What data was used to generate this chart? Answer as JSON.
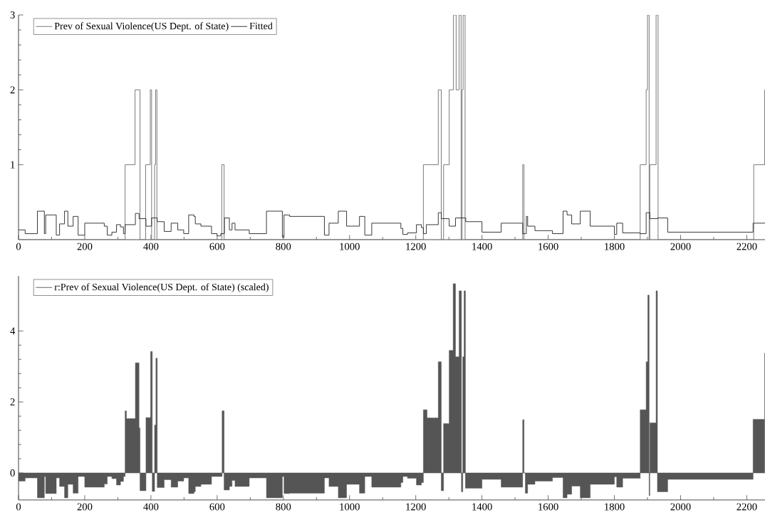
{
  "chart_data": [
    {
      "type": "step",
      "xlim": [
        0,
        2255
      ],
      "ylim": [
        0,
        3
      ],
      "xticks": [
        0,
        200,
        400,
        600,
        800,
        1000,
        1200,
        1400,
        1600,
        1800,
        2000,
        2200
      ],
      "yticks": [
        1,
        2,
        3
      ],
      "legend": "top left",
      "series": [
        {
          "name": "Prev of Sexual Violence(US Dept. of State)",
          "color": "#707070",
          "x": [
            0,
            322,
            352,
            367,
            384,
            398,
            402,
            411,
            414,
            418,
            614,
            621,
            1223,
            1268,
            1277,
            1284,
            1301,
            1314,
            1322,
            1331,
            1337,
            1340,
            1343,
            1349,
            1523,
            1527,
            1878,
            1896,
            1900,
            1905,
            1907,
            1926,
            1932,
            2221,
            2254
          ],
          "values": [
            0,
            1,
            2,
            0,
            1,
            2,
            0,
            1,
            2,
            0,
            1,
            0,
            1,
            2,
            0,
            1,
            2,
            3,
            2,
            3,
            0,
            2,
            3,
            0,
            1,
            0,
            1,
            2,
            3,
            0,
            1,
            3,
            0,
            1,
            2
          ]
        },
        {
          "name": "Fitted",
          "color": "#2a2a2a",
          "x": [
            0,
            20,
            57,
            78,
            82,
            114,
            124,
            139,
            149,
            165,
            180,
            200,
            259,
            268,
            282,
            296,
            308,
            317,
            322,
            353,
            364,
            385,
            402,
            419,
            440,
            461,
            481,
            499,
            514,
            530,
            534,
            551,
            583,
            600,
            611,
            622,
            637,
            645,
            654,
            697,
            749,
            797,
            802,
            819,
            924,
            938,
            966,
            991,
            1030,
            1046,
            1067,
            1155,
            1161,
            1175,
            1202,
            1217,
            1223,
            1232,
            1268,
            1277,
            1301,
            1320,
            1351,
            1400,
            1458,
            1523,
            1534,
            1538,
            1560,
            1613,
            1645,
            1657,
            1671,
            1697,
            1727,
            1800,
            1807,
            1825,
            1878,
            1896,
            1907,
            1930,
            1961,
            2219,
            2255
          ],
          "values": [
            0.13,
            0.08,
            0.38,
            0.08,
            0.33,
            0.06,
            0.21,
            0.38,
            0.18,
            0.31,
            0.06,
            0.22,
            0.18,
            0.06,
            0.1,
            0.2,
            0.17,
            0.08,
            0.2,
            0.35,
            0.28,
            0.18,
            0.29,
            0.24,
            0.11,
            0.22,
            0.13,
            0.08,
            0.33,
            0.31,
            0.21,
            0.18,
            0.08,
            0.05,
            0.08,
            0.29,
            0.13,
            0.22,
            0.13,
            0.08,
            0.38,
            0.03,
            0.33,
            0.31,
            0.06,
            0.22,
            0.38,
            0.18,
            0.31,
            0.06,
            0.22,
            0.15,
            0.07,
            0.09,
            0.2,
            0.16,
            0.08,
            0.2,
            0.36,
            0.28,
            0.18,
            0.29,
            0.24,
            0.1,
            0.22,
            0.08,
            0.31,
            0.18,
            0.12,
            0.08,
            0.38,
            0.33,
            0.21,
            0.38,
            0.18,
            0.07,
            0.22,
            0.09,
            0.08,
            0.36,
            0.28,
            0.29,
            0.1,
            0.22,
            0.22
          ]
        }
      ]
    },
    {
      "type": "area",
      "xlim": [
        0,
        2255
      ],
      "ylim": [
        -0.76,
        5.55
      ],
      "xticks": [
        0,
        200,
        400,
        600,
        800,
        1000,
        1200,
        1400,
        1600,
        1800,
        2000,
        2200
      ],
      "yticks": [
        0,
        2,
        4
      ],
      "legend": "top left",
      "series": [
        {
          "name": "r:Prev of Sexual Violence(US Dept. of State) (scaled)",
          "color": "#555555",
          "x": [
            0,
            20,
            57,
            78,
            82,
            114,
            124,
            139,
            149,
            165,
            180,
            200,
            259,
            268,
            282,
            296,
            308,
            317,
            322,
            326,
            353,
            364,
            367,
            385,
            399,
            404,
            411,
            415,
            419,
            440,
            461,
            481,
            499,
            514,
            530,
            534,
            551,
            583,
            615,
            621,
            637,
            645,
            654,
            697,
            749,
            797,
            802,
            819,
            924,
            938,
            966,
            991,
            1030,
            1046,
            1067,
            1155,
            1161,
            1175,
            1202,
            1217,
            1223,
            1234,
            1268,
            1277,
            1284,
            1301,
            1313,
            1320,
            1331,
            1338,
            1342,
            1346,
            1350,
            1400,
            1458,
            1523,
            1527,
            1531,
            1538,
            1560,
            1613,
            1645,
            1657,
            1671,
            1697,
            1727,
            1800,
            1807,
            1825,
            1878,
            1896,
            1901,
            1905,
            1907,
            1926,
            1930,
            1961,
            2219,
            2254
          ],
          "values": [
            -0.23,
            -0.14,
            -0.7,
            -0.1,
            -0.58,
            -0.14,
            -0.38,
            -0.7,
            -0.32,
            -0.57,
            -0.1,
            -0.4,
            -0.31,
            -0.1,
            -0.16,
            -0.34,
            -0.24,
            -0.1,
            1.75,
            1.53,
            3.1,
            1.27,
            -0.5,
            1.56,
            3.42,
            -0.52,
            1.35,
            3.23,
            -0.41,
            -0.19,
            -0.4,
            -0.23,
            -0.14,
            -0.58,
            -0.53,
            -0.38,
            -0.32,
            -0.1,
            1.75,
            -0.48,
            -0.38,
            -0.21,
            -0.38,
            -0.14,
            -0.7,
            -0.1,
            -0.58,
            -0.57,
            -0.14,
            -0.38,
            -0.7,
            -0.32,
            -0.57,
            -0.1,
            -0.4,
            -0.27,
            -0.1,
            -0.15,
            -0.34,
            -0.27,
            1.78,
            1.55,
            3.13,
            -0.5,
            1.39,
            3.45,
            5.33,
            3.27,
            5.13,
            -0.53,
            3.27,
            5.13,
            -0.43,
            -0.18,
            -0.4,
            1.5,
            0.0,
            -0.57,
            -0.32,
            -0.23,
            -0.13,
            -0.7,
            -0.6,
            -0.37,
            -0.7,
            -0.32,
            -0.11,
            -0.4,
            -0.15,
            1.78,
            3.13,
            5.01,
            -0.64,
            1.41,
            5.13,
            -0.53,
            -0.18,
            1.51,
            3.38
          ]
        }
      ]
    }
  ]
}
